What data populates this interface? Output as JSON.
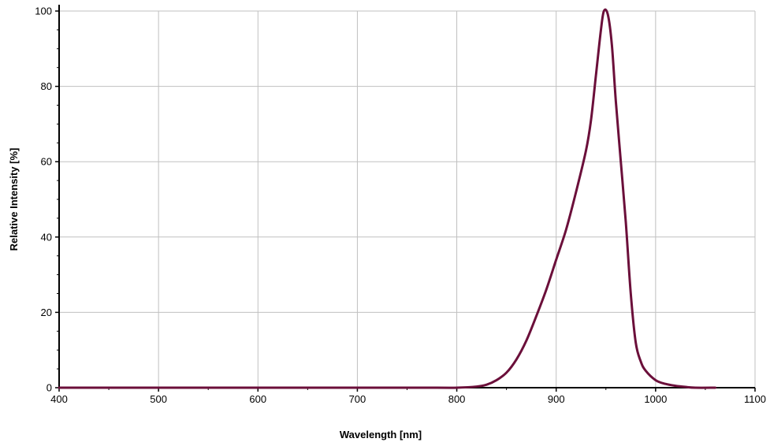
{
  "chart_data": {
    "type": "line",
    "title": "",
    "xlabel": "Wavelength [nm]",
    "ylabel": "Relative Intensity [%]",
    "xlim": [
      400,
      1100
    ],
    "ylim": [
      0,
      100
    ],
    "x_ticks": [
      400,
      500,
      600,
      700,
      800,
      900,
      1000,
      1100
    ],
    "y_ticks": [
      0,
      20,
      40,
      60,
      80,
      100
    ],
    "grid": true,
    "legend": "none",
    "series": [
      {
        "color": "#6B0F3A",
        "x": [
          400,
          700,
          780,
          800,
          820,
          830,
          840,
          850,
          860,
          870,
          880,
          890,
          900,
          910,
          920,
          930,
          935,
          940,
          945,
          948,
          952,
          956,
          960,
          965,
          970,
          975,
          980,
          985,
          990,
          1000,
          1010,
          1020,
          1030,
          1040,
          1060
        ],
        "y": [
          0,
          0,
          0,
          0,
          0.3,
          0.8,
          2,
          4,
          7.5,
          12.5,
          19,
          26,
          34,
          42,
          52,
          63,
          71,
          83,
          95,
          100,
          99,
          91,
          76,
          60,
          44,
          25,
          12,
          7,
          4.5,
          2,
          1,
          0.5,
          0.2,
          0,
          0
        ]
      }
    ]
  }
}
